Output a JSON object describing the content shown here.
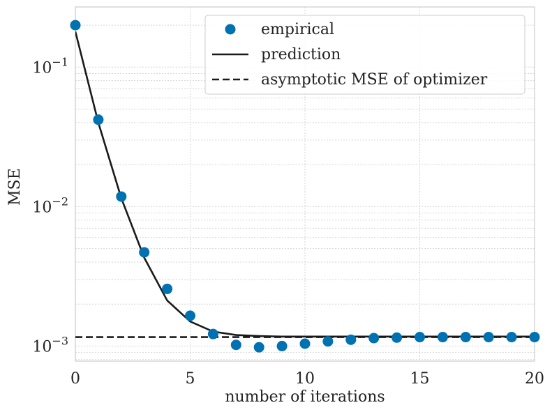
{
  "chart_data": {
    "type": "line",
    "xlabel": "number of iterations",
    "ylabel": "MSE",
    "xlim": [
      0,
      20
    ],
    "ylim": [
      0.00078,
      0.27
    ],
    "yscale": "log",
    "xticks": [
      0,
      5,
      10,
      15,
      20
    ],
    "yticks": [
      {
        "value": 0.1,
        "base": "10",
        "exp": "−1"
      },
      {
        "value": 0.01,
        "base": "10",
        "exp": "−2"
      },
      {
        "value": 0.001,
        "base": "10",
        "exp": "−3"
      }
    ],
    "grid": true,
    "legend_position": "top-right",
    "series": [
      {
        "name": "empirical",
        "style": "markers",
        "color": "#0072b2",
        "x": [
          0,
          1,
          2,
          3,
          4,
          5,
          6,
          7,
          8,
          9,
          10,
          11,
          12,
          13,
          14,
          15,
          16,
          17,
          18,
          19,
          20
        ],
        "values": [
          0.2,
          0.042,
          0.0118,
          0.0047,
          0.00257,
          0.00165,
          0.00122,
          0.00102,
          0.00098,
          0.001,
          0.00104,
          0.00108,
          0.00111,
          0.00114,
          0.00115,
          0.00116,
          0.00116,
          0.00116,
          0.00116,
          0.00116,
          0.00116
        ]
      },
      {
        "name": "prediction",
        "style": "solid",
        "color": "#1a1a1a",
        "x": [
          0,
          1,
          2,
          3,
          4,
          5,
          6,
          7,
          8,
          9,
          10,
          11,
          12,
          13,
          14,
          15,
          16,
          17,
          18,
          19,
          20
        ],
        "values": [
          0.18,
          0.04,
          0.0115,
          0.0043,
          0.00212,
          0.0015,
          0.00127,
          0.0012,
          0.00118,
          0.00117,
          0.00117,
          0.00117,
          0.00117,
          0.00117,
          0.00117,
          0.00117,
          0.00117,
          0.00117,
          0.00117,
          0.00117,
          0.00117
        ]
      },
      {
        "name": "asymptotic MSE of optimizer",
        "style": "dashed",
        "color": "#1a1a1a",
        "x": [
          0,
          20
        ],
        "values": [
          0.00116,
          0.00116
        ]
      }
    ]
  }
}
